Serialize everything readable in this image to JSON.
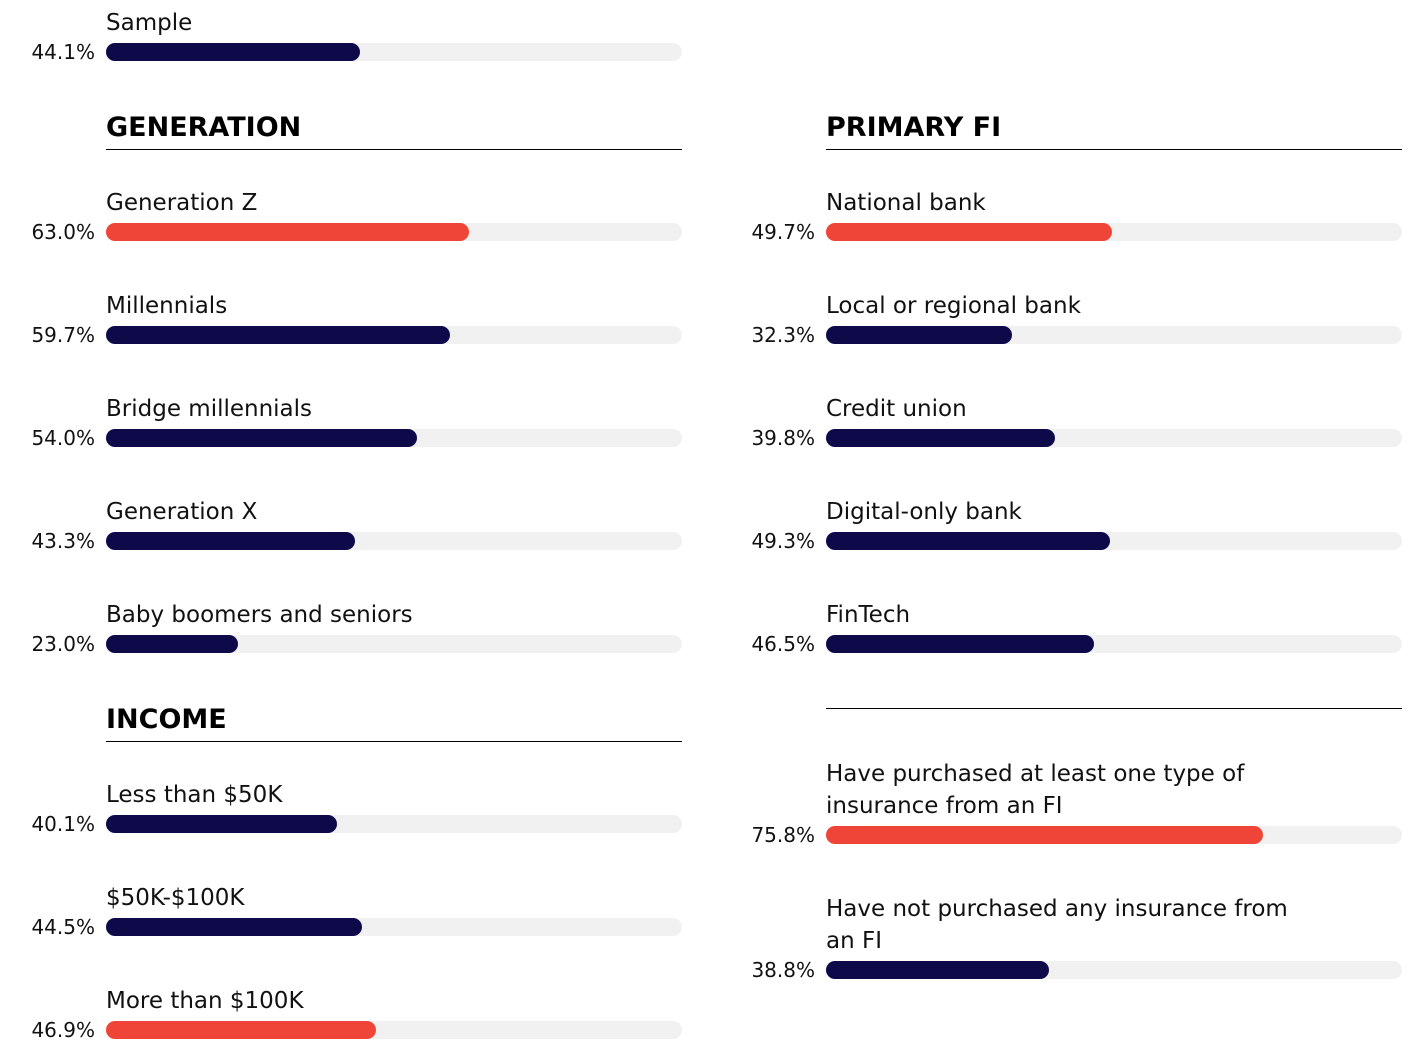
{
  "chart_data": [
    {
      "type": "bar",
      "categories": [
        "Sample"
      ],
      "values": [
        44.1
      ],
      "value_labels": [
        "44.1%"
      ],
      "colors": [
        "#0e0a4a"
      ],
      "xlim": [
        0,
        100
      ]
    },
    {
      "type": "bar",
      "title": "GENERATION",
      "categories": [
        "Generation Z",
        "Millennials",
        "Bridge millennials",
        "Generation X",
        "Baby boomers and seniors"
      ],
      "values": [
        63.0,
        59.7,
        54.0,
        43.3,
        23.0
      ],
      "value_labels": [
        "63.0%",
        "59.7%",
        "54.0%",
        "43.3%",
        "23.0%"
      ],
      "colors": [
        "#ef4538",
        "#0e0a4a",
        "#0e0a4a",
        "#0e0a4a",
        "#0e0a4a"
      ],
      "xlim": [
        0,
        100
      ]
    },
    {
      "type": "bar",
      "title": "INCOME",
      "categories": [
        "Less than $50K",
        "$50K-$100K",
        "More than $100K"
      ],
      "values": [
        40.1,
        44.5,
        46.9
      ],
      "value_labels": [
        "40.1%",
        "44.5%",
        "46.9%"
      ],
      "colors": [
        "#0e0a4a",
        "#0e0a4a",
        "#ef4538"
      ],
      "xlim": [
        0,
        100
      ]
    },
    {
      "type": "bar",
      "title": "PRIMARY FI",
      "categories": [
        "National bank",
        "Local or regional bank",
        "Credit union",
        "Digital-only bank",
        "FinTech"
      ],
      "values": [
        49.7,
        32.3,
        39.8,
        49.3,
        46.5
      ],
      "value_labels": [
        "49.7%",
        "32.3%",
        "39.8%",
        "49.3%",
        "46.5%"
      ],
      "colors": [
        "#ef4538",
        "#0e0a4a",
        "#0e0a4a",
        "#0e0a4a",
        "#0e0a4a"
      ],
      "xlim": [
        0,
        100
      ]
    },
    {
      "type": "bar",
      "categories": [
        "Have purchased at least one type of insurance from an FI",
        "Have not purchased any insurance from an FI"
      ],
      "values": [
        75.8,
        38.8
      ],
      "value_labels": [
        "75.8%",
        "38.8%"
      ],
      "colors": [
        "#ef4538",
        "#0e0a4a"
      ],
      "xlim": [
        0,
        100
      ]
    }
  ]
}
